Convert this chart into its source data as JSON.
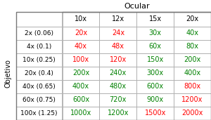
{
  "title_ocular": "Ocular",
  "title_objetivo": "Objetivo",
  "col_headers": [
    "10x",
    "12x",
    "15x",
    "20x"
  ],
  "row_headers": [
    "2x (0.06)",
    "4x (0.1)",
    "10x (0.25)",
    "20x (0.4)",
    "40x (0.65)",
    "60x (0.75)",
    "100x (1.25)"
  ],
  "cell_values": [
    [
      "20x",
      "24x",
      "30x",
      "40x"
    ],
    [
      "40x",
      "48x",
      "60x",
      "80x"
    ],
    [
      "100x",
      "120x",
      "150x",
      "200x"
    ],
    [
      "200x",
      "240x",
      "300x",
      "400x"
    ],
    [
      "400x",
      "480x",
      "600x",
      "800x"
    ],
    [
      "600x",
      "720x",
      "900x",
      "1200x"
    ],
    [
      "1000x",
      "1200x",
      "1500x",
      "2000x"
    ]
  ],
  "cell_colors": [
    [
      "#ff0000",
      "#ff0000",
      "#008000",
      "#008000"
    ],
    [
      "#ff0000",
      "#ff0000",
      "#008000",
      "#008000"
    ],
    [
      "#ff0000",
      "#ff0000",
      "#008000",
      "#008000"
    ],
    [
      "#008000",
      "#008000",
      "#008000",
      "#008000"
    ],
    [
      "#008000",
      "#008000",
      "#008000",
      "#ff0000"
    ],
    [
      "#008000",
      "#008000",
      "#008000",
      "#ff0000"
    ],
    [
      "#008000",
      "#008000",
      "#ff0000",
      "#ff0000"
    ]
  ],
  "bg_color": "#ffffff",
  "border_color": "#aaaaaa",
  "header_text_color": "#000000",
  "row_header_text_color": "#000000",
  "ocular_fontsize": 8,
  "header_fontsize": 7,
  "row_header_fontsize": 6.5,
  "cell_fontsize": 7,
  "objetivo_fontsize": 7
}
